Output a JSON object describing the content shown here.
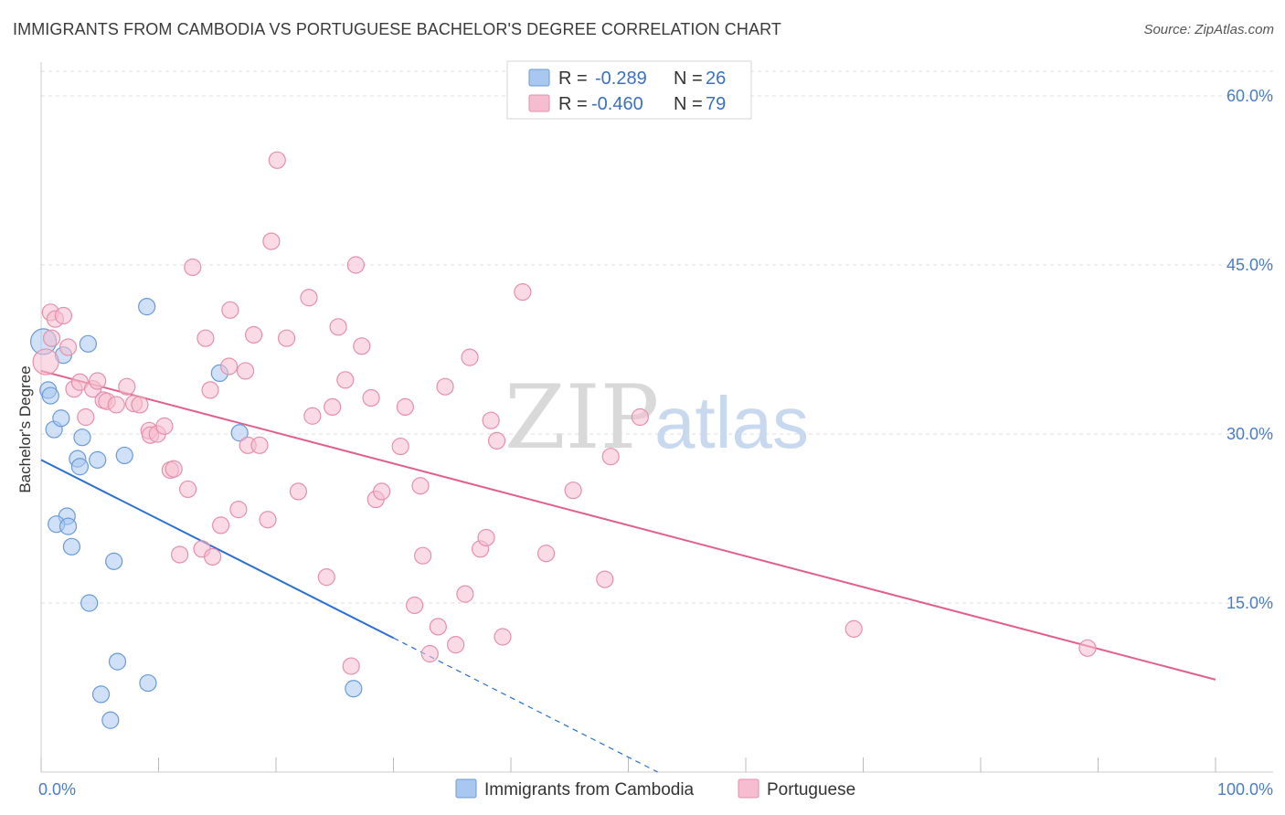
{
  "title": "IMMIGRANTS FROM CAMBODIA VS PORTUGUESE BACHELOR'S DEGREE CORRELATION CHART",
  "source": "Source: ZipAtlas.com",
  "watermark": {
    "zip": "ZIP",
    "atlas": "atlas"
  },
  "colors": {
    "blue_fill": "#a9c8f0",
    "blue_stroke": "#6a9ad8",
    "blue_line": "#2b6fd1",
    "pink_fill": "#f6bdd0",
    "pink_stroke": "#e68fab",
    "pink_line": "#e0608b",
    "tick_text": "#4a7cc7",
    "grid": "#dddddd"
  },
  "legend": {
    "rows": [
      {
        "r_label": "R = ",
        "r_value": "-0.289",
        "n_label": "N = ",
        "n_value": "26",
        "color": "blue"
      },
      {
        "r_label": "R = ",
        "r_value": "-0.460",
        "n_label": "N = ",
        "n_value": "79",
        "color": "pink"
      }
    ]
  },
  "bottom_legend": [
    {
      "label": "Immigrants from Cambodia",
      "color": "blue"
    },
    {
      "label": "Portuguese",
      "color": "pink"
    }
  ],
  "chart_data": {
    "type": "scatter",
    "title": "IMMIGRANTS FROM CAMBODIA VS PORTUGUESE BACHELOR'S DEGREE CORRELATION CHART",
    "xlabel": "",
    "ylabel": "Bachelor's Degree",
    "xlim": [
      0,
      100
    ],
    "ylim": [
      0,
      63
    ],
    "x_tick_labels": [
      {
        "value": 0,
        "label": "0.0%"
      },
      {
        "value": 100,
        "label": "100.0%"
      }
    ],
    "y_tick_labels": [
      {
        "value": 15,
        "label": "15.0%"
      },
      {
        "value": 30,
        "label": "30.0%"
      },
      {
        "value": 45,
        "label": "45.0%"
      },
      {
        "value": 60,
        "label": "60.0%"
      }
    ],
    "grid": "horizontal dashed",
    "legend_position": "top-center",
    "series": [
      {
        "name": "Immigrants from Cambodia",
        "color": "blue",
        "points": [
          [
            0.2,
            38.2
          ],
          [
            0.6,
            33.9
          ],
          [
            0.8,
            33.4
          ],
          [
            1.9,
            37.0
          ],
          [
            4.0,
            38.0
          ],
          [
            1.1,
            30.4
          ],
          [
            1.7,
            31.4
          ],
          [
            3.5,
            29.7
          ],
          [
            3.1,
            27.8
          ],
          [
            3.3,
            27.1
          ],
          [
            4.8,
            27.7
          ],
          [
            7.1,
            28.1
          ],
          [
            9.0,
            41.3
          ],
          [
            15.2,
            35.4
          ],
          [
            16.9,
            30.1
          ],
          [
            2.2,
            22.7
          ],
          [
            1.3,
            22.0
          ],
          [
            2.3,
            21.8
          ],
          [
            2.6,
            20.0
          ],
          [
            6.2,
            18.7
          ],
          [
            4.1,
            15.0
          ],
          [
            6.5,
            9.8
          ],
          [
            5.1,
            6.9
          ],
          [
            9.1,
            7.9
          ],
          [
            5.9,
            4.6
          ],
          [
            26.6,
            7.4
          ]
        ],
        "trend": {
          "x0": 0,
          "y0": 27.7,
          "x1": 30,
          "y1": 11.9,
          "dashed_to_x": 52.5,
          "dashed_to_y": 0
        }
      },
      {
        "name": "Portuguese",
        "color": "pink",
        "points": [
          [
            0.4,
            36.4
          ],
          [
            0.8,
            40.8
          ],
          [
            1.2,
            40.2
          ],
          [
            1.9,
            40.5
          ],
          [
            2.3,
            37.7
          ],
          [
            2.8,
            34.0
          ],
          [
            3.3,
            34.6
          ],
          [
            3.8,
            31.5
          ],
          [
            4.4,
            34.0
          ],
          [
            4.8,
            34.7
          ],
          [
            5.3,
            33.0
          ],
          [
            5.6,
            32.9
          ],
          [
            6.4,
            32.6
          ],
          [
            7.3,
            34.2
          ],
          [
            7.9,
            32.7
          ],
          [
            8.4,
            32.6
          ],
          [
            9.2,
            30.3
          ],
          [
            9.3,
            29.9
          ],
          [
            9.9,
            30.0
          ],
          [
            10.5,
            30.7
          ],
          [
            11.0,
            26.8
          ],
          [
            11.3,
            26.9
          ],
          [
            11.8,
            19.3
          ],
          [
            12.5,
            25.1
          ],
          [
            12.9,
            44.8
          ],
          [
            13.7,
            19.8
          ],
          [
            14.0,
            38.5
          ],
          [
            14.4,
            33.9
          ],
          [
            14.6,
            19.1
          ],
          [
            15.3,
            21.9
          ],
          [
            16.0,
            36.0
          ],
          [
            16.1,
            41.0
          ],
          [
            16.8,
            23.3
          ],
          [
            17.4,
            35.6
          ],
          [
            17.6,
            29.0
          ],
          [
            18.6,
            29.0
          ],
          [
            18.1,
            38.8
          ],
          [
            19.3,
            22.4
          ],
          [
            19.6,
            47.1
          ],
          [
            20.1,
            54.3
          ],
          [
            20.9,
            38.5
          ],
          [
            21.9,
            24.9
          ],
          [
            22.8,
            42.1
          ],
          [
            23.1,
            31.6
          ],
          [
            24.3,
            17.3
          ],
          [
            24.8,
            32.4
          ],
          [
            25.3,
            39.5
          ],
          [
            25.9,
            34.8
          ],
          [
            26.4,
            9.4
          ],
          [
            26.8,
            45.0
          ],
          [
            27.3,
            37.8
          ],
          [
            28.1,
            33.2
          ],
          [
            28.5,
            24.2
          ],
          [
            29.0,
            24.9
          ],
          [
            30.6,
            28.9
          ],
          [
            31.0,
            32.4
          ],
          [
            31.8,
            14.8
          ],
          [
            32.3,
            25.4
          ],
          [
            32.5,
            19.2
          ],
          [
            33.1,
            10.5
          ],
          [
            33.8,
            12.9
          ],
          [
            34.4,
            34.2
          ],
          [
            35.3,
            11.3
          ],
          [
            36.1,
            15.8
          ],
          [
            36.5,
            36.8
          ],
          [
            37.4,
            19.8
          ],
          [
            37.9,
            20.8
          ],
          [
            38.3,
            31.2
          ],
          [
            38.8,
            29.4
          ],
          [
            39.3,
            12.0
          ],
          [
            41.0,
            42.6
          ],
          [
            43.0,
            19.4
          ],
          [
            45.3,
            25.0
          ],
          [
            48.0,
            17.1
          ],
          [
            48.5,
            28.0
          ],
          [
            51.0,
            31.5
          ],
          [
            69.2,
            12.7
          ],
          [
            89.1,
            11.0
          ],
          [
            0.9,
            38.5
          ]
        ],
        "trend": {
          "x0": 0,
          "y0": 35.6,
          "x1": 100,
          "y1": 8.2
        }
      }
    ]
  }
}
